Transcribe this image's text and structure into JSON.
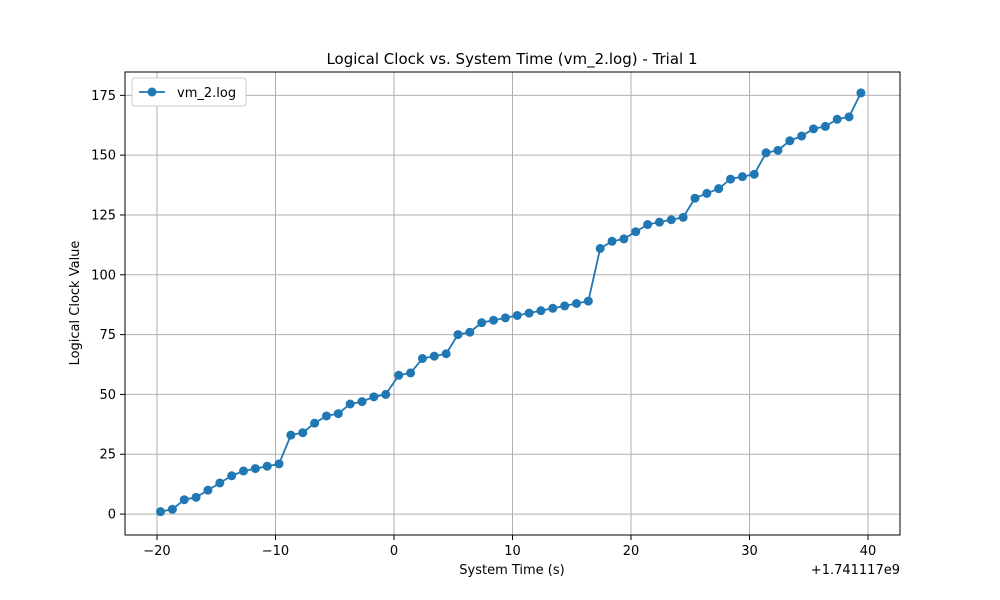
{
  "chart_data": {
    "type": "line",
    "title": "Logical Clock vs. System Time (vm_2.log) - Trial 1",
    "xlabel": "System Time (s)",
    "ylabel": "Logical Clock Value",
    "x_offset_label": "+1.741117e9",
    "xlim": [
      -22.7,
      42.7
    ],
    "ylim": [
      -8.75,
      184.75
    ],
    "xticks": [
      -20,
      -10,
      0,
      10,
      20,
      30,
      40
    ],
    "xtick_labels": [
      "−20",
      "−10",
      "0",
      "10",
      "20",
      "30",
      "40"
    ],
    "yticks": [
      0,
      25,
      50,
      75,
      100,
      125,
      150,
      175
    ],
    "ytick_labels": [
      "0",
      "25",
      "50",
      "75",
      "100",
      "125",
      "150",
      "175"
    ],
    "grid": true,
    "legend_position": "top-left",
    "colors": {
      "series": "#1f77b4",
      "grid": "#b0b0b0",
      "axes": "#000000"
    },
    "series": [
      {
        "name": "vm_2.log",
        "marker": "circle",
        "x": [
          -19.7,
          -18.7,
          -17.7,
          -16.7,
          -15.7,
          -14.7,
          -13.7,
          -12.7,
          -11.7,
          -10.7,
          -9.7,
          -8.7,
          -7.7,
          -6.7,
          -5.7,
          -4.7,
          -3.7,
          -2.7,
          -1.7,
          -0.7,
          0.4,
          1.4,
          2.4,
          3.4,
          4.4,
          5.4,
          6.4,
          7.4,
          8.4,
          9.4,
          10.4,
          11.4,
          12.4,
          13.4,
          14.4,
          15.4,
          16.4,
          17.4,
          18.4,
          19.4,
          20.4,
          21.4,
          22.4,
          23.4,
          24.4,
          25.4,
          26.4,
          27.4,
          28.4,
          29.4,
          30.4,
          31.4,
          32.4,
          33.4,
          34.4,
          35.4,
          36.4,
          37.4,
          38.4,
          39.4
        ],
        "y": [
          1,
          2,
          6,
          7,
          10,
          13,
          16,
          18,
          19,
          20,
          21,
          33,
          34,
          38,
          41,
          42,
          46,
          47,
          49,
          50,
          58,
          59,
          65,
          66,
          67,
          75,
          76,
          80,
          81,
          82,
          83,
          84,
          85,
          86,
          87,
          88,
          89,
          111,
          114,
          115,
          118,
          121,
          122,
          123,
          124,
          132,
          134,
          136,
          140,
          141,
          142,
          151,
          152,
          156,
          158,
          161,
          162,
          165,
          166,
          176
        ]
      }
    ]
  }
}
